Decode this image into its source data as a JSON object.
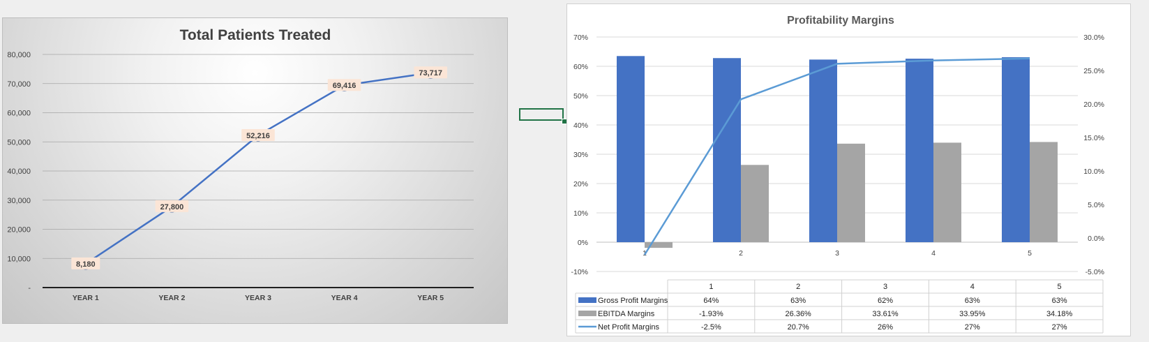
{
  "chart_data": [
    {
      "type": "line",
      "title": "Total Patients Treated",
      "categories": [
        "YEAR 1",
        "YEAR 2",
        "YEAR 3",
        "YEAR 4",
        "YEAR 5"
      ],
      "series": [
        {
          "values": [
            8180,
            27800,
            52216,
            69416,
            73717
          ],
          "color": "#4472c4"
        }
      ],
      "data_labels": [
        "8,180",
        "27,800",
        "52,216",
        "69,416",
        "73,717"
      ],
      "ylim": [
        0,
        80000
      ],
      "yticks": [
        0,
        10000,
        20000,
        30000,
        40000,
        50000,
        60000,
        70000,
        80000
      ],
      "ytick_labels": [
        "-",
        "10,000",
        "20,000",
        "30,000",
        "40,000",
        "50,000",
        "60,000",
        "70,000",
        "80,000"
      ],
      "grid": true,
      "xlabel": "",
      "ylabel": ""
    },
    {
      "type": "bar",
      "title": "Profitability Margins",
      "categories": [
        "1",
        "2",
        "3",
        "4",
        "5"
      ],
      "series": [
        {
          "name": "Gross Profit Margins",
          "axis": "left",
          "kind": "bar",
          "color": "#4472c4",
          "values": [
            63.5,
            62.8,
            62.3,
            62.6,
            63.1
          ]
        },
        {
          "name": "EBITDA Margins",
          "axis": "left",
          "kind": "bar",
          "color": "#a5a5a5",
          "values": [
            -1.93,
            26.36,
            33.61,
            33.95,
            34.18
          ]
        },
        {
          "name": "Net Profit Margins",
          "axis": "right",
          "kind": "line",
          "color": "#5b9bd5",
          "values": [
            -2.5,
            20.7,
            26,
            26.5,
            26.8
          ]
        }
      ],
      "ylim_left": [
        -10,
        70
      ],
      "yticks_left_labels": [
        "-10%",
        "0%",
        "10%",
        "20%",
        "30%",
        "40%",
        "50%",
        "60%",
        "70%"
      ],
      "ylim_right": [
        -5,
        30
      ],
      "yticks_right_labels": [
        "-5.0%",
        "0.0%",
        "5.0%",
        "10.0%",
        "15.0%",
        "20.0%",
        "25.0%",
        "30.0%"
      ],
      "grid": true,
      "data_table": {
        "headers": [
          "1",
          "2",
          "3",
          "4",
          "5"
        ],
        "rows": [
          {
            "label": "Gross Profit Margins",
            "cells": [
              "64%",
              "63%",
              "62%",
              "63%",
              "63%"
            ]
          },
          {
            "label": "EBITDA Margins",
            "cells": [
              "-1.93%",
              "26.36%",
              "33.61%",
              "33.95%",
              "34.18%"
            ]
          },
          {
            "label": "Net Profit Margins",
            "cells": [
              "-2.5%",
              "20.7%",
              "26%",
              "27%",
              "27%"
            ]
          }
        ]
      }
    }
  ]
}
